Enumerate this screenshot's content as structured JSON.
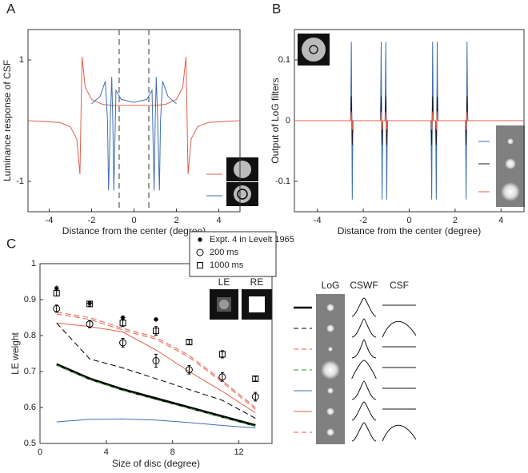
{
  "chart_data": [
    {
      "type": "line",
      "panel": "A",
      "xlabel": "Distance from the center (degree)",
      "ylabel": "Luminance response of CSF",
      "xlim": [
        -5,
        5
      ],
      "ylim": [
        -1.5,
        1.5
      ],
      "xticks": [
        -4,
        -2,
        0,
        2,
        4
      ],
      "yticks": [
        -1,
        1
      ],
      "vlines": [
        -0.7,
        0.7
      ],
      "series": [
        {
          "color": "#e0604a",
          "x": [
            -5,
            -3.5,
            -3,
            -2.7,
            -2.55,
            -2.5,
            -2.45,
            -2.3,
            -2,
            -1.5,
            -1,
            0,
            1,
            1.5,
            2,
            2.3,
            2.45,
            2.5,
            2.55,
            2.7,
            3,
            3.5,
            5
          ],
          "values": [
            0,
            -0.03,
            -0.1,
            -0.3,
            -0.88,
            0.1,
            1.05,
            0.55,
            0.35,
            0.27,
            0.25,
            0.25,
            0.25,
            0.27,
            0.35,
            0.55,
            1.05,
            0.1,
            -0.88,
            -0.3,
            -0.1,
            -0.03,
            0
          ]
        },
        {
          "color": "#3f6fb5",
          "x": [
            -2,
            -1.6,
            -1.35,
            -1.25,
            -1.2,
            -1.1,
            -1.05,
            -1,
            -0.95,
            -0.85,
            -0.6,
            0,
            0.6,
            0.85,
            0.95,
            1,
            1.05,
            1.1,
            1.2,
            1.25,
            1.35,
            1.6,
            2
          ],
          "values": [
            0.28,
            0.4,
            0.65,
            0,
            -1.15,
            0.2,
            0.72,
            0,
            -1.15,
            0.5,
            0.35,
            0.3,
            0.35,
            0.5,
            -1.15,
            0,
            0.72,
            0.2,
            -1.15,
            0,
            0.65,
            0.4,
            0.28
          ]
        }
      ]
    },
    {
      "type": "line",
      "panel": "B",
      "xlabel": "Distance from the center (degree)",
      "ylabel": "Output of LoG filters",
      "xlim": [
        -5,
        5
      ],
      "ylim": [
        -0.15,
        0.15
      ],
      "xticks": [
        -4,
        -2,
        0,
        2,
        4
      ],
      "yticks": [
        -0.1,
        0,
        0.1
      ],
      "x": [
        -5,
        -2.55,
        -2.52,
        -2.48,
        -2.45,
        -1.25,
        -1.22,
        -1.18,
        -1.15,
        -1.05,
        -1.02,
        -0.98,
        -0.95,
        0.95,
        0.98,
        1.02,
        1.05,
        1.15,
        1.18,
        1.22,
        1.25,
        2.45,
        2.48,
        2.52,
        2.55,
        5
      ],
      "series": [
        {
          "color": "#3f6fb5",
          "values": [
            0,
            0,
            0.13,
            -0.13,
            0,
            0,
            0.13,
            -0.13,
            0,
            0,
            0.13,
            -0.13,
            0,
            0,
            -0.13,
            0.13,
            0,
            0,
            -0.13,
            0.13,
            0,
            0,
            -0.13,
            0.13,
            0,
            0
          ]
        },
        {
          "color": "#1a1a2e",
          "values": [
            0,
            0,
            0.04,
            -0.04,
            0,
            0,
            0.04,
            -0.04,
            0,
            0,
            0.04,
            -0.04,
            0,
            0,
            -0.04,
            0.04,
            0,
            0,
            -0.04,
            0.04,
            0,
            0,
            -0.04,
            0.04,
            0,
            0
          ]
        },
        {
          "color": "#e0604a",
          "values": [
            0,
            0,
            0.015,
            -0.015,
            0,
            0,
            0.015,
            -0.015,
            0,
            0,
            0.015,
            -0.015,
            0,
            0,
            -0.015,
            0.015,
            0,
            0,
            -0.015,
            0.015,
            0,
            0,
            -0.015,
            0.015,
            0,
            0
          ]
        }
      ]
    },
    {
      "type": "line",
      "panel": "C",
      "xlabel": "Size of disc (degree)",
      "ylabel": "LE weight",
      "xlim": [
        0,
        14
      ],
      "ylim": [
        0.5,
        1
      ],
      "xticks": [
        0,
        4,
        8,
        12
      ],
      "yticks": [
        0.5,
        0.6,
        0.7,
        0.8,
        0.9,
        1
      ],
      "inset_labels": [
        "LE",
        "RE"
      ],
      "filter_headers": [
        "LoG",
        "CSWF",
        "CSF"
      ],
      "x": [
        1,
        3,
        5,
        7,
        9,
        11,
        13
      ],
      "series": [
        {
          "color": "#000000",
          "width": 3,
          "values": [
            0.72,
            0.68,
            0.65,
            0.625,
            0.6,
            0.575,
            0.55
          ]
        },
        {
          "color": "#000000",
          "dash": true,
          "values": [
            0.835,
            0.735,
            0.71,
            0.68,
            0.65,
            0.62,
            0.57
          ]
        },
        {
          "color": "#e0604a",
          "dash": true,
          "values": [
            0.86,
            0.845,
            0.815,
            0.79,
            0.74,
            0.67,
            0.595
          ]
        },
        {
          "color": "#3a9a3a",
          "dash": true,
          "values": [
            0.718,
            0.678,
            0.648,
            0.622,
            0.598,
            0.573,
            0.548
          ]
        },
        {
          "color": "#3f6fb5",
          "values": [
            0.56,
            0.567,
            0.568,
            0.565,
            0.558,
            0.55,
            0.543
          ]
        },
        {
          "color": "#e0604a",
          "values": [
            0.835,
            0.825,
            0.81,
            0.76,
            0.7,
            0.645,
            0.585
          ]
        },
        {
          "color": "#e0604a",
          "dash": true,
          "values": [
            0.865,
            0.85,
            0.82,
            0.795,
            0.745,
            0.675,
            0.6
          ]
        },
        {
          "name": "Expt. 4 in Levelt 1965",
          "color": "#000000",
          "marker": "star",
          "values": [
            0.932,
            0.89,
            0.85,
            0.845,
            null,
            null,
            null
          ]
        },
        {
          "name": "200 ms",
          "color": "#000000",
          "marker": "circle",
          "values": [
            0.875,
            0.832,
            0.78,
            0.73,
            0.705,
            0.685,
            0.63
          ],
          "errors": [
            0.01,
            0.01,
            0.012,
            0.018,
            0.012,
            0.012,
            0.012
          ]
        },
        {
          "name": "1000 ms",
          "color": "#000000",
          "marker": "square",
          "values": [
            0.918,
            0.888,
            0.835,
            0.813,
            0.782,
            0.748,
            0.68
          ],
          "errors": [
            0.008,
            0.006,
            0.01,
            0.012,
            0.006,
            0.01,
            0.006
          ]
        }
      ]
    }
  ]
}
